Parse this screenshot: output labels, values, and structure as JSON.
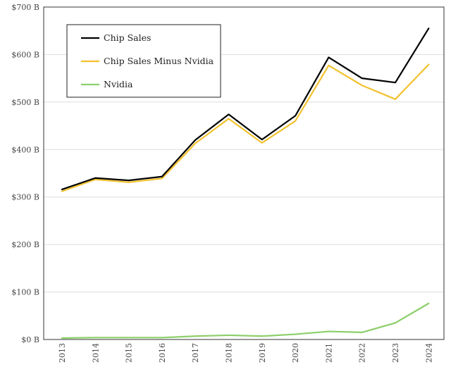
{
  "chart_data": {
    "type": "line",
    "categories": [
      "2013",
      "2014",
      "2015",
      "2016",
      "2017",
      "2018",
      "2019",
      "2020",
      "2021",
      "2022",
      "2023",
      "2024"
    ],
    "y_ticks": [
      "$0 B",
      "$100 B",
      "$200 B",
      "$300 B",
      "$400 B",
      "$500 B",
      "$600 B",
      "$700 B"
    ],
    "ylim": [
      0,
      700
    ],
    "grid": true,
    "legend_position": "top-left",
    "series": [
      {
        "name": "Chip Sales",
        "color": "#000000",
        "values": [
          316,
          340,
          335,
          343,
          420,
          474,
          421,
          471,
          594,
          550,
          541,
          655
        ]
      },
      {
        "name": "Chip Sales Minus Nvidia",
        "color": "#f2c12e",
        "values": [
          312,
          337,
          331,
          339,
          413,
          465,
          414,
          460,
          577,
          535,
          506,
          579
        ]
      },
      {
        "name": "Nvidia",
        "color": "#8ccf6a",
        "values": [
          3,
          4,
          4,
          4,
          7,
          9,
          7,
          11,
          17,
          15,
          35,
          76
        ]
      }
    ]
  }
}
